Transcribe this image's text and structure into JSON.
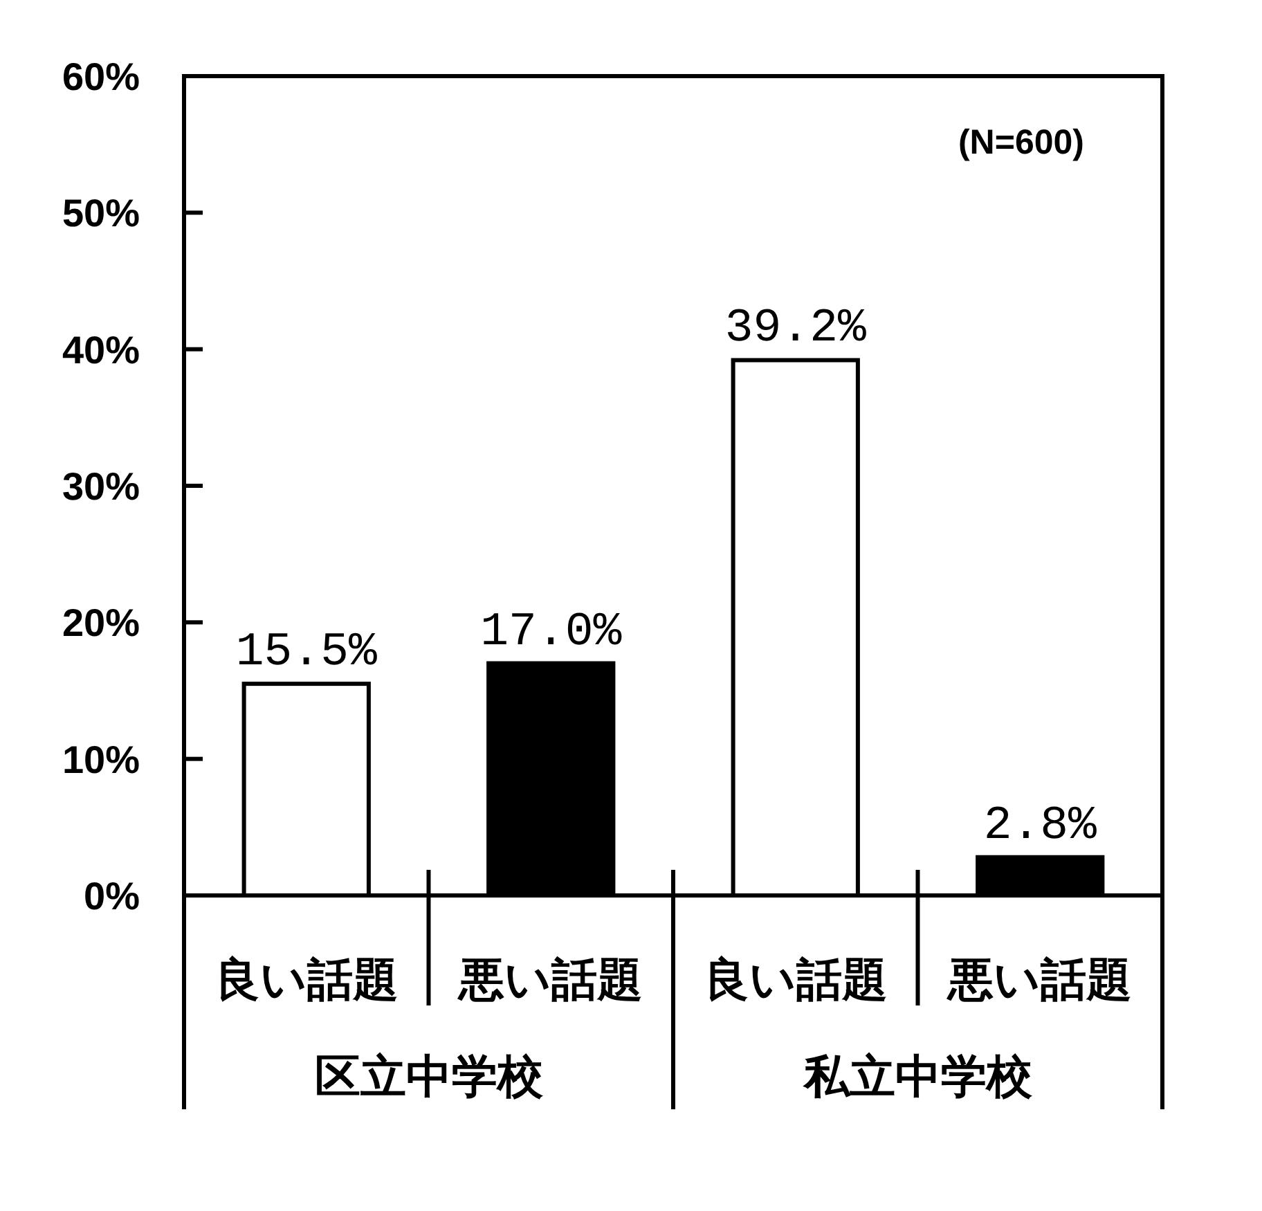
{
  "chart_data": {
    "type": "bar",
    "categories": [
      "区立中学校",
      "私立中学校"
    ],
    "series": [
      {
        "name": "良い話題",
        "color": "#ffffff",
        "values": [
          15.5,
          39.2
        ],
        "value_labels": [
          "15.5%",
          "39.2%"
        ]
      },
      {
        "name": "悪い話題",
        "color": "#000000",
        "values": [
          17.0,
          2.8
        ],
        "value_labels": [
          "17.0%",
          "2.8%"
        ]
      }
    ],
    "ylim": [
      0,
      60
    ],
    "yticks": [
      {
        "value": 0,
        "label": "0%"
      },
      {
        "value": 10,
        "label": "10%"
      },
      {
        "value": 20,
        "label": "20%"
      },
      {
        "value": 30,
        "label": "30%"
      },
      {
        "value": 40,
        "label": "40%"
      },
      {
        "value": 50,
        "label": "50%"
      },
      {
        "value": 60,
        "label": "60%"
      }
    ],
    "annotations": [
      "(N=600)"
    ]
  }
}
